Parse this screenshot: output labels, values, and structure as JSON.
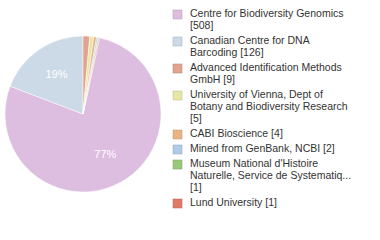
{
  "chart_data": {
    "type": "pie",
    "categories": [
      "Centre for Biodiversity Genomics [508]",
      "Canadian Centre for DNA Barcoding [126]",
      "Advanced Identification Methods GmbH [9]",
      "University of Vienna, Dept of Botany and Biodiversity Research [5]",
      "CABI Bioscience [4]",
      "Mined from GenBank, NCBI [2]",
      "Museum National d'Histoire Naturelle, Service de Systematiq... [1]",
      "Lund University [1]"
    ],
    "values": [
      77.4,
      19.2,
      1.4,
      0.8,
      0.6,
      0.3,
      0.15,
      0.15
    ],
    "value_labels": [
      "77%",
      "19%",
      null,
      null,
      null,
      null,
      null,
      null
    ],
    "colors": [
      "#ddbde0",
      "#ccd9e6",
      "#e2a48f",
      "#e6e6a6",
      "#e8b585",
      "#aecbe8",
      "#98c878",
      "#e07a68"
    ],
    "data_labels": true,
    "legend": "right"
  }
}
